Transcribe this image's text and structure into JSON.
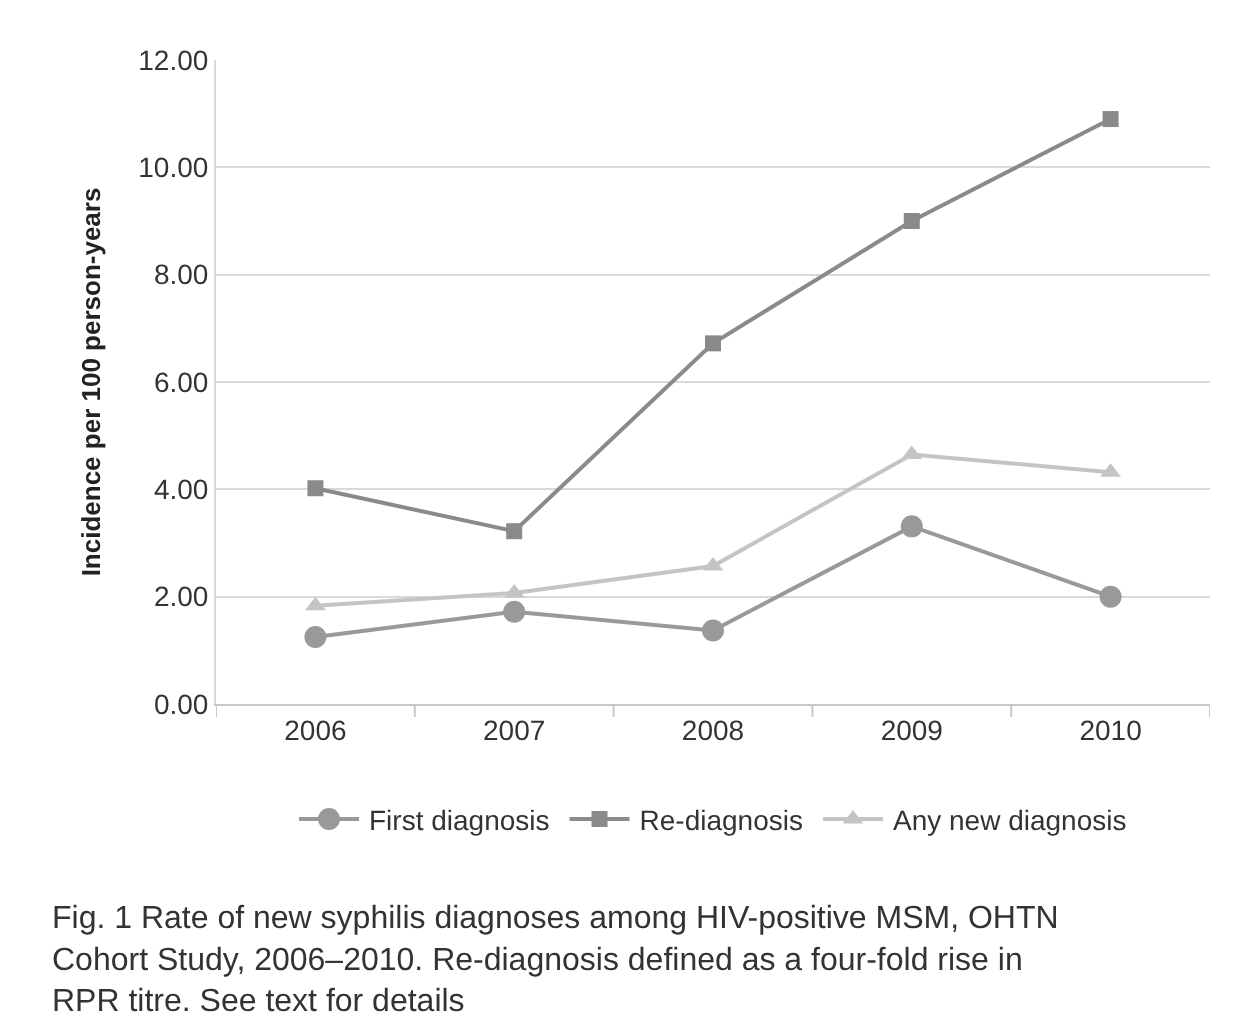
{
  "chart_data": {
    "type": "line",
    "ylabel": "Incidence per 100 person-years",
    "categories": [
      "2006",
      "2007",
      "2008",
      "2009",
      "2010"
    ],
    "series": [
      {
        "name": "First diagnosis",
        "color": "#999999",
        "marker": "circle",
        "values": [
          1.25,
          1.72,
          1.37,
          3.31,
          2.0
        ]
      },
      {
        "name": "Re-diagnosis",
        "color": "#8a8a8a",
        "marker": "square",
        "values": [
          4.02,
          3.22,
          6.72,
          9.0,
          10.9
        ]
      },
      {
        "name": "Any new diagnosis",
        "color": "#c4c4c4",
        "marker": "triangle",
        "values": [
          1.83,
          2.07,
          2.57,
          4.65,
          4.32
        ]
      }
    ],
    "ylim": [
      0,
      12
    ],
    "yticks": [
      {
        "value": 0,
        "label": "0.00"
      },
      {
        "value": 2,
        "label": "2.00"
      },
      {
        "value": 4,
        "label": "4.00"
      },
      {
        "value": 6,
        "label": "6.00"
      },
      {
        "value": 8,
        "label": "8.00"
      },
      {
        "value": 10,
        "label": "10.00"
      },
      {
        "value": 12,
        "label": "12.00"
      }
    ],
    "grid": "y",
    "legend": "bottom",
    "annotations": [
      "Fig. 1 Rate of new syphilis diagnoses among HIV-positive MSM, OHTN Cohort Study, 2006–2010. Re-diagnosis defined as a four-fold rise in RPR titre. See text for details"
    ]
  }
}
